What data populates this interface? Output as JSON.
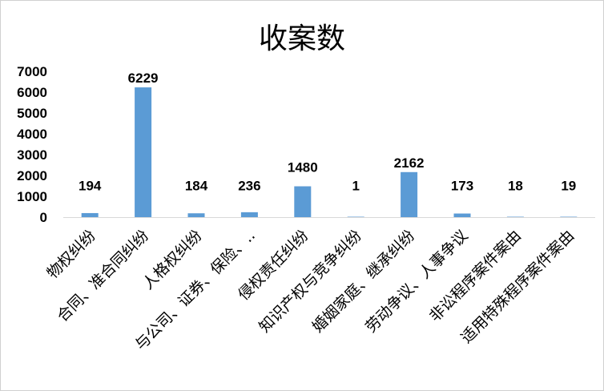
{
  "chart_data": {
    "type": "bar",
    "title": "收案数",
    "categories": [
      "物权纠纷",
      "合同、准合同纠纷",
      "人格权纠纷",
      "与公司、证券、保险、..",
      "侵权责任纠纷",
      "知识产权与竞争纠纷",
      "婚姻家庭、继承纠纷",
      "劳动争议、人事争议",
      "非讼程序案件案由",
      "适用特殊程序案件案由"
    ],
    "values": [
      194,
      6229,
      184,
      236,
      1480,
      1,
      2162,
      173,
      18,
      19
    ],
    "data_labels": [
      "194",
      "6229",
      "184",
      "236",
      "1480",
      "1",
      "2162",
      "173",
      "18",
      "19"
    ],
    "yticks": [
      "0",
      "1000",
      "2000",
      "3000",
      "4000",
      "5000",
      "6000",
      "7000"
    ],
    "ylim": [
      0,
      7000
    ],
    "grid": false,
    "legend": false,
    "bar_color": "#5b9bd5"
  }
}
